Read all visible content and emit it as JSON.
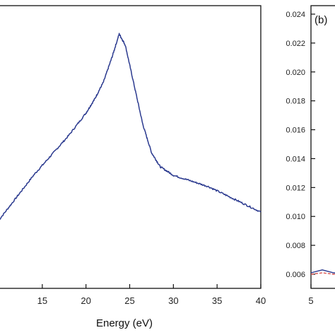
{
  "chart_data": [
    {
      "type": "line",
      "xlabel": "Energy (eV)",
      "xlim": [
        10,
        40
      ],
      "x_ticks": [
        15,
        20,
        25,
        30,
        35,
        40
      ],
      "y_ticks": [],
      "series": [
        {
          "color": "#2b3a8f",
          "x": [
            10,
            12,
            14,
            16,
            18,
            20,
            21,
            22,
            23,
            23.8,
            24.5,
            25.5,
            26.5,
            27.5,
            28.5,
            30,
            32,
            34,
            36,
            38,
            40
          ],
          "y": [
            0.24,
            0.32,
            0.4,
            0.47,
            0.54,
            0.62,
            0.67,
            0.73,
            0.82,
            0.9,
            0.86,
            0.72,
            0.58,
            0.48,
            0.43,
            0.4,
            0.38,
            0.36,
            0.33,
            0.3,
            0.27
          ]
        }
      ]
    },
    {
      "type": "line",
      "panel_label": "(b)",
      "xlim": [
        5,
        6
      ],
      "ylim": [
        0.006,
        0.024
      ],
      "x_ticks": [
        5
      ],
      "y_ticks": [
        "0.006",
        "0.008",
        "0.010",
        "0.012",
        "0.014",
        "0.016",
        "0.018",
        "0.020",
        "0.022",
        "0.024"
      ],
      "series": [
        {
          "color": "#2b3a8f",
          "x": [
            5.0,
            5.2,
            5.4,
            5.6
          ],
          "y": [
            0.0061,
            0.0063,
            0.0061,
            0.006
          ]
        },
        {
          "color": "#d9534f",
          "x": [
            5.0,
            5.2,
            5.4,
            5.6
          ],
          "y": [
            0.006,
            0.0061,
            0.006,
            0.006
          ]
        }
      ]
    }
  ]
}
